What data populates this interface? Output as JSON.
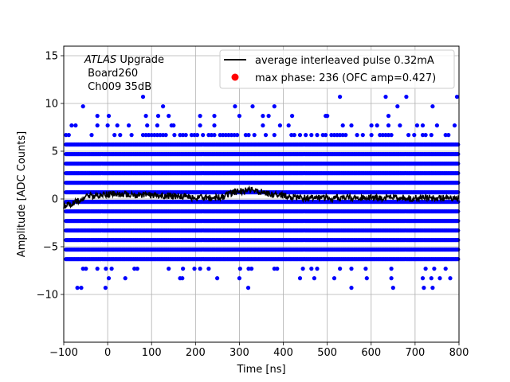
{
  "chart_data": {
    "type": "scatter",
    "xlabel": "Time [ns]",
    "ylabel": "Amplitude [ADC Counts]",
    "xlim": [
      -100,
      800
    ],
    "ylim": [
      -15,
      16
    ],
    "xticks": [
      -100,
      0,
      100,
      200,
      300,
      400,
      500,
      600,
      700,
      800
    ],
    "yticks": [
      -10,
      -5,
      0,
      5,
      10,
      15
    ],
    "grid": true,
    "legend_position": "top-right",
    "annotation": {
      "line1_italic": "ATLAS",
      "line1_rest": " Upgrade",
      "line2": " Board260",
      "line3": " Ch009 35dB"
    },
    "legend": [
      {
        "label": "average interleaved pulse 0.32mA",
        "color": "#000000",
        "marker": "line"
      },
      {
        "label": "max phase: 236 (OFC amp=0.427)",
        "color": "#ff0000",
        "marker": "dot"
      }
    ],
    "series": [
      {
        "name": "samples",
        "color": "#0000ff",
        "dense_levels": [
          -6.3,
          -5.3,
          -4.3,
          -3.3,
          -2.3,
          -1.3,
          -0.3,
          0.7,
          1.7,
          2.7,
          3.7,
          4.7,
          5.7
        ],
        "sparse_levels": [
          -9.3,
          -8.3,
          -7.3,
          6.7,
          7.7,
          8.7,
          9.7,
          10.7
        ],
        "outliers": [
          {
            "x": -73,
            "y": 7.7
          },
          {
            "x": 0,
            "y": 7.7
          },
          {
            "x": 90,
            "y": 7.7
          },
          {
            "x": 115,
            "y": 8.7
          },
          {
            "x": 150,
            "y": 7.7
          },
          {
            "x": 290,
            "y": 9.7
          },
          {
            "x": 330,
            "y": 9.7
          },
          {
            "x": 300,
            "y": 8.7
          },
          {
            "x": 420,
            "y": 8.7
          },
          {
            "x": 500,
            "y": 8.7
          },
          {
            "x": 680,
            "y": 10.7
          },
          {
            "x": 660,
            "y": 9.7
          },
          {
            "x": 740,
            "y": 9.7
          },
          {
            "x": 790,
            "y": 7.7
          },
          {
            "x": -60,
            "y": -9.3
          },
          {
            "x": -5,
            "y": -9.3
          },
          {
            "x": 40,
            "y": -8.3
          },
          {
            "x": 170,
            "y": -8.3
          },
          {
            "x": 320,
            "y": -9.3
          },
          {
            "x": 300,
            "y": -8.3
          },
          {
            "x": 650,
            "y": -9.3
          },
          {
            "x": 720,
            "y": -9.3
          },
          {
            "x": 740,
            "y": -9.3
          },
          {
            "x": 590,
            "y": -8.3
          },
          {
            "x": 780,
            "y": -8.3
          }
        ]
      },
      {
        "name": "average interleaved pulse 0.32mA",
        "color": "#000000",
        "points": [
          {
            "x": -100,
            "y": -0.7
          },
          {
            "x": -80,
            "y": -0.4
          },
          {
            "x": -60,
            "y": 0.0
          },
          {
            "x": -40,
            "y": 0.3
          },
          {
            "x": -20,
            "y": 0.4
          },
          {
            "x": 0,
            "y": 0.5
          },
          {
            "x": 20,
            "y": 0.5
          },
          {
            "x": 40,
            "y": 0.5
          },
          {
            "x": 60,
            "y": 0.4
          },
          {
            "x": 80,
            "y": 0.4
          },
          {
            "x": 100,
            "y": 0.4
          },
          {
            "x": 120,
            "y": 0.4
          },
          {
            "x": 140,
            "y": 0.3
          },
          {
            "x": 160,
            "y": 0.3
          },
          {
            "x": 180,
            "y": 0.2
          },
          {
            "x": 200,
            "y": 0.1
          },
          {
            "x": 220,
            "y": 0.1
          },
          {
            "x": 240,
            "y": 0.1
          },
          {
            "x": 260,
            "y": 0.2
          },
          {
            "x": 280,
            "y": 0.6
          },
          {
            "x": 300,
            "y": 0.8
          },
          {
            "x": 320,
            "y": 0.9
          },
          {
            "x": 340,
            "y": 0.8
          },
          {
            "x": 360,
            "y": 0.6
          },
          {
            "x": 380,
            "y": 0.4
          },
          {
            "x": 400,
            "y": 0.3
          },
          {
            "x": 420,
            "y": 0.2
          },
          {
            "x": 440,
            "y": 0.1
          },
          {
            "x": 460,
            "y": 0.1
          },
          {
            "x": 480,
            "y": 0.1
          },
          {
            "x": 500,
            "y": 0.1
          },
          {
            "x": 520,
            "y": 0.1
          },
          {
            "x": 540,
            "y": 0.1
          },
          {
            "x": 560,
            "y": 0.1
          },
          {
            "x": 580,
            "y": 0.1
          },
          {
            "x": 600,
            "y": 0.1
          },
          {
            "x": 620,
            "y": 0.1
          },
          {
            "x": 640,
            "y": 0.1
          },
          {
            "x": 660,
            "y": 0.1
          },
          {
            "x": 680,
            "y": 0.1
          },
          {
            "x": 700,
            "y": 0.1
          },
          {
            "x": 720,
            "y": 0.1
          },
          {
            "x": 740,
            "y": 0.1
          },
          {
            "x": 760,
            "y": 0.1
          },
          {
            "x": 780,
            "y": 0.1
          },
          {
            "x": 800,
            "y": 0.1
          }
        ]
      }
    ]
  }
}
